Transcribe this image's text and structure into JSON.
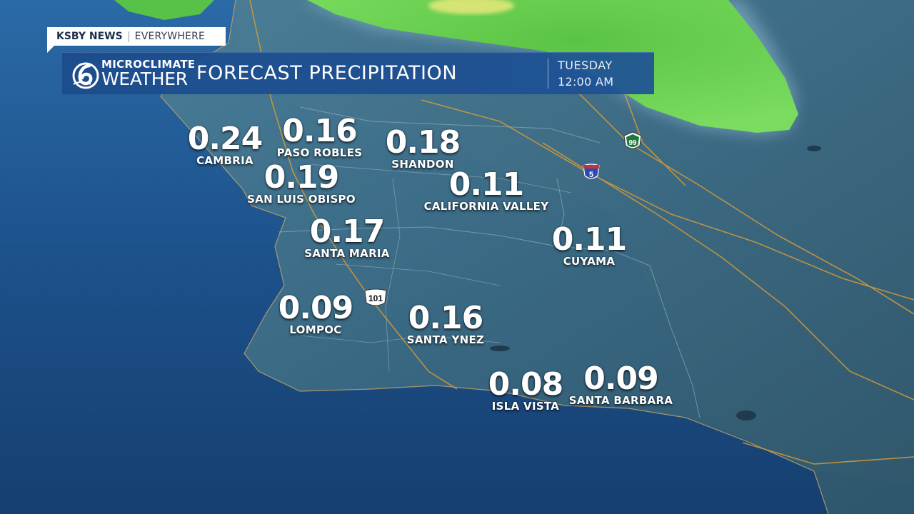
{
  "brand": {
    "network": "KSBY NEWS",
    "tagline": "EVERYWHERE"
  },
  "banner": {
    "logo_line1": "MICROCLIMATE",
    "logo_line2": "WEATHER",
    "title": "FORECAST PRECIPITATION",
    "day": "TUESDAY",
    "time": "12:00 AM"
  },
  "colors": {
    "ocean": "#1d4f86",
    "land": "#3a6a84",
    "precip_green": "#6fd650",
    "precip_yellow": "#e8e87a",
    "roads": "#d59a3a",
    "banner": "#1c4c8c"
  },
  "locations": [
    {
      "name": "CAMBRIA",
      "value": "0.24"
    },
    {
      "name": "PASO ROBLES",
      "value": "0.16"
    },
    {
      "name": "SHANDON",
      "value": "0.18"
    },
    {
      "name": "SAN LUIS OBISPO",
      "value": "0.19"
    },
    {
      "name": "CALIFORNIA VALLEY",
      "value": "0.11"
    },
    {
      "name": "SANTA MARIA",
      "value": "0.17"
    },
    {
      "name": "CUYAMA",
      "value": "0.11"
    },
    {
      "name": "LOMPOC",
      "value": "0.09"
    },
    {
      "name": "SANTA YNEZ",
      "value": "0.16"
    },
    {
      "name": "ISLA VISTA",
      "value": "0.08"
    },
    {
      "name": "SANTA BARBARA",
      "value": "0.09"
    }
  ],
  "highway_shields": [
    {
      "label": "101",
      "icon": "us-highway-shield-icon"
    },
    {
      "label": "5",
      "icon": "interstate-shield-icon"
    },
    {
      "label": "99",
      "icon": "state-route-shield-icon"
    }
  ]
}
